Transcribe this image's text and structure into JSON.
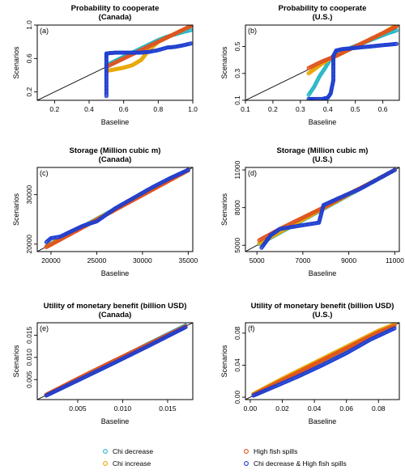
{
  "legend": [
    {
      "label": "Chi decrease",
      "color": "#29b7c6"
    },
    {
      "label": "Chi increase",
      "color": "#e9a600"
    },
    {
      "label": "High fish spills",
      "color": "#e0531e"
    },
    {
      "label": "Chi decrease & High fish spills",
      "color": "#1f3fd0"
    }
  ],
  "chart_data": [
    {
      "type": "scatter",
      "panel": "(a)",
      "title": "Probability to cooperate",
      "subtitle": "(Canada)",
      "xlabel": "Baseline",
      "ylabel": "Scenarios",
      "xlim": [
        0.1,
        1.0
      ],
      "ylim": [
        0.1,
        1.0
      ],
      "xticks": [
        0.2,
        0.4,
        0.6,
        0.8,
        1.0
      ],
      "xtick_labels": [
        "0.2",
        "0.4",
        "0.6",
        "0.8",
        "1.0"
      ],
      "yticks": [
        0.2,
        0.6,
        1.0
      ],
      "ytick_labels": [
        "0.2",
        "0.6",
        "1.0"
      ],
      "series": [
        {
          "name": "Chi decrease",
          "x": [
            0.5,
            0.55,
            0.6,
            0.65,
            0.7,
            0.75,
            0.8,
            0.85,
            0.9,
            0.95,
            0.99
          ],
          "y": [
            0.52,
            0.57,
            0.62,
            0.67,
            0.72,
            0.77,
            0.82,
            0.86,
            0.89,
            0.92,
            0.94
          ]
        },
        {
          "name": "Chi increase",
          "x": [
            0.5,
            0.55,
            0.6,
            0.65,
            0.7,
            0.75,
            0.8,
            0.9,
            0.99
          ],
          "y": [
            0.45,
            0.47,
            0.49,
            0.52,
            0.58,
            0.71,
            0.8,
            0.9,
            0.99
          ]
        },
        {
          "name": "High fish spills",
          "x": [
            0.5,
            0.6,
            0.7,
            0.8,
            0.9,
            1.0
          ],
          "y": [
            0.5,
            0.6,
            0.7,
            0.8,
            0.9,
            1.0
          ]
        },
        {
          "name": "Chi decrease & High fish spills",
          "x": [
            0.5,
            0.5,
            0.5,
            0.5,
            0.5,
            0.5,
            0.55,
            0.6,
            0.65,
            0.7,
            0.75,
            0.8,
            0.85,
            0.9,
            0.95,
            0.99
          ],
          "y": [
            0.15,
            0.3,
            0.45,
            0.55,
            0.62,
            0.66,
            0.67,
            0.67,
            0.67,
            0.67,
            0.68,
            0.7,
            0.73,
            0.74,
            0.76,
            0.78
          ]
        }
      ]
    },
    {
      "type": "scatter",
      "panel": "(b)",
      "title": "Probability to cooperate",
      "subtitle": "(U.S.)",
      "xlabel": "Baseline",
      "ylabel": "Scenarios",
      "xlim": [
        0.1,
        0.66
      ],
      "ylim": [
        0.1,
        0.66
      ],
      "xticks": [
        0.1,
        0.2,
        0.3,
        0.4,
        0.5,
        0.6
      ],
      "xtick_labels": [
        "0.1",
        "0.2",
        "0.3",
        "0.4",
        "0.5",
        "0.6"
      ],
      "yticks": [
        0.1,
        0.3,
        0.5
      ],
      "ytick_labels": [
        "0.1",
        "0.3",
        "0.5"
      ],
      "series": [
        {
          "name": "Chi decrease",
          "x": [
            0.33,
            0.35,
            0.37,
            0.39,
            0.41,
            0.43,
            0.47,
            0.52,
            0.57,
            0.62,
            0.65
          ],
          "y": [
            0.14,
            0.2,
            0.28,
            0.34,
            0.41,
            0.45,
            0.48,
            0.52,
            0.56,
            0.6,
            0.62
          ]
        },
        {
          "name": "Chi increase",
          "x": [
            0.33,
            0.35,
            0.37,
            0.4,
            0.45,
            0.5,
            0.55,
            0.6,
            0.65
          ],
          "y": [
            0.3,
            0.33,
            0.36,
            0.4,
            0.45,
            0.5,
            0.55,
            0.6,
            0.66
          ]
        },
        {
          "name": "High fish spills",
          "x": [
            0.33,
            0.38,
            0.43,
            0.48,
            0.53,
            0.58,
            0.63,
            0.65
          ],
          "y": [
            0.34,
            0.39,
            0.43,
            0.48,
            0.53,
            0.58,
            0.63,
            0.65
          ]
        },
        {
          "name": "Chi decrease & High fish spills",
          "x": [
            0.33,
            0.35,
            0.38,
            0.4,
            0.41,
            0.42,
            0.42,
            0.42,
            0.43,
            0.45,
            0.5,
            0.55,
            0.6,
            0.65
          ],
          "y": [
            0.11,
            0.11,
            0.11,
            0.12,
            0.15,
            0.25,
            0.35,
            0.43,
            0.47,
            0.48,
            0.49,
            0.5,
            0.51,
            0.52
          ]
        }
      ]
    },
    {
      "type": "scatter",
      "panel": "(c)",
      "title": "Storage (Million cubic m)",
      "subtitle": "(Canada)",
      "xlabel": "Baseline",
      "ylabel": "Scenarios",
      "xlim": [
        18500,
        35500
      ],
      "ylim": [
        18500,
        35500
      ],
      "xticks": [
        20000,
        25000,
        30000,
        35000
      ],
      "xtick_labels": [
        "20000",
        "25000",
        "30000",
        "35000"
      ],
      "yticks": [
        20000,
        30000
      ],
      "ytick_labels": [
        "20000",
        "30000"
      ],
      "series": [
        {
          "name": "Chi decrease",
          "x": [
            19500,
            23000,
            27000,
            31000,
            35000
          ],
          "y": [
            19600,
            23100,
            27100,
            31000,
            35000
          ]
        },
        {
          "name": "Chi increase",
          "x": [
            19500,
            23000,
            27000,
            31000,
            35000
          ],
          "y": [
            19500,
            23000,
            27000,
            31000,
            35000
          ]
        },
        {
          "name": "High fish spills",
          "x": [
            19500,
            23000,
            27000,
            31000,
            35000
          ],
          "y": [
            19400,
            22900,
            26900,
            30900,
            34900
          ]
        },
        {
          "name": "Chi decrease & High fish spills",
          "x": [
            19500,
            20000,
            21000,
            22000,
            23500,
            25000,
            27000,
            29000,
            31000,
            33000,
            35000
          ],
          "y": [
            20400,
            21200,
            21500,
            22400,
            23700,
            24600,
            27200,
            29300,
            31400,
            33300,
            35000
          ]
        }
      ]
    },
    {
      "type": "scatter",
      "panel": "(d)",
      "title": "Storage (Million cubic m)",
      "subtitle": "(U.S.)",
      "xlabel": "Baseline",
      "ylabel": "Scenarios",
      "xlim": [
        4500,
        11200
      ],
      "ylim": [
        4500,
        11200
      ],
      "xticks": [
        5000,
        7000,
        9000,
        11000
      ],
      "xtick_labels": [
        "5000",
        "7000",
        "9000",
        "11000"
      ],
      "yticks": [
        5000,
        8000,
        11000
      ],
      "ytick_labels": [
        "5000",
        "8000",
        "11000"
      ],
      "series": [
        {
          "name": "Chi decrease",
          "x": [
            5100,
            6500,
            8000,
            9500,
            11000
          ],
          "y": [
            5100,
            6500,
            8000,
            9500,
            11000
          ]
        },
        {
          "name": "Chi increase",
          "x": [
            5100,
            6500,
            8000,
            9500,
            11000
          ],
          "y": [
            5150,
            6550,
            8050,
            9550,
            11000
          ]
        },
        {
          "name": "High fish spills",
          "x": [
            5100,
            6000,
            7000,
            8000,
            9000,
            10000,
            11000
          ],
          "y": [
            5400,
            6300,
            7200,
            8100,
            9100,
            10000,
            11000
          ]
        },
        {
          "name": "Chi decrease & High fish spills",
          "x": [
            5200,
            5400,
            5600,
            6000,
            7000,
            7700,
            7800,
            7900,
            8500,
            9500,
            11000
          ],
          "y": [
            4800,
            5300,
            5800,
            6300,
            6600,
            6800,
            7500,
            8200,
            8700,
            9500,
            11000
          ]
        }
      ]
    },
    {
      "type": "scatter",
      "panel": "(e)",
      "title": "Utility of monetary benefit (billion USD)",
      "subtitle": "(Canada)",
      "xlabel": "Baseline",
      "ylabel": "Scenarios",
      "xlim": [
        0.0005,
        0.0178
      ],
      "ylim": [
        0.0005,
        0.0178
      ],
      "xticks": [
        0.005,
        0.01,
        0.015
      ],
      "xtick_labels": [
        "0.005",
        "0.010",
        "0.015"
      ],
      "yticks": [
        0.005,
        0.01,
        0.015
      ],
      "ytick_labels": [
        "0.005",
        "0.010",
        "0.015"
      ],
      "series": [
        {
          "name": "Chi decrease",
          "x": [
            0.0015,
            0.005,
            0.009,
            0.013,
            0.017
          ],
          "y": [
            0.0015,
            0.005,
            0.0091,
            0.0132,
            0.0172
          ]
        },
        {
          "name": "Chi increase",
          "x": [
            0.0015,
            0.005,
            0.009,
            0.013,
            0.017
          ],
          "y": [
            0.0015,
            0.005,
            0.009,
            0.013,
            0.017
          ]
        },
        {
          "name": "High fish spills",
          "x": [
            0.0015,
            0.005,
            0.009,
            0.013,
            0.017
          ],
          "y": [
            0.0016,
            0.0052,
            0.0092,
            0.0131,
            0.017
          ]
        },
        {
          "name": "Chi decrease & High fish spills",
          "x": [
            0.0015,
            0.005,
            0.009,
            0.01,
            0.013,
            0.017
          ],
          "y": [
            0.0014,
            0.0048,
            0.0087,
            0.0097,
            0.0127,
            0.0168
          ]
        }
      ]
    },
    {
      "type": "scatter",
      "panel": "(f)",
      "title": "Utility of monetary benefit (billion USD)",
      "subtitle": "(U.S.)",
      "xlabel": "Baseline",
      "ylabel": "Scenarios",
      "xlim": [
        -0.003,
        0.093
      ],
      "ylim": [
        -0.003,
        0.093
      ],
      "xticks": [
        0.0,
        0.02,
        0.04,
        0.06,
        0.08
      ],
      "xtick_labels": [
        "0.00",
        "0.02",
        "0.04",
        "0.06",
        "0.08"
      ],
      "yticks": [
        0.0,
        0.04,
        0.08
      ],
      "ytick_labels": [
        "0.00",
        "0.04",
        "0.08"
      ],
      "series": [
        {
          "name": "Chi decrease",
          "x": [
            0.002,
            0.02,
            0.04,
            0.06,
            0.08,
            0.09
          ],
          "y": [
            0.003,
            0.021,
            0.04,
            0.06,
            0.081,
            0.089
          ]
        },
        {
          "name": "Chi increase",
          "x": [
            0.002,
            0.02,
            0.04,
            0.06,
            0.08,
            0.09
          ],
          "y": [
            0.004,
            0.023,
            0.043,
            0.063,
            0.083,
            0.091
          ]
        },
        {
          "name": "High fish spills",
          "x": [
            0.002,
            0.02,
            0.04,
            0.06,
            0.08,
            0.09
          ],
          "y": [
            0.003,
            0.021,
            0.041,
            0.061,
            0.081,
            0.089
          ]
        },
        {
          "name": "Chi decrease & High fish spills",
          "x": [
            0.002,
            0.015,
            0.03,
            0.045,
            0.06,
            0.075,
            0.09
          ],
          "y": [
            0.002,
            0.013,
            0.026,
            0.04,
            0.055,
            0.072,
            0.086
          ]
        }
      ]
    }
  ]
}
